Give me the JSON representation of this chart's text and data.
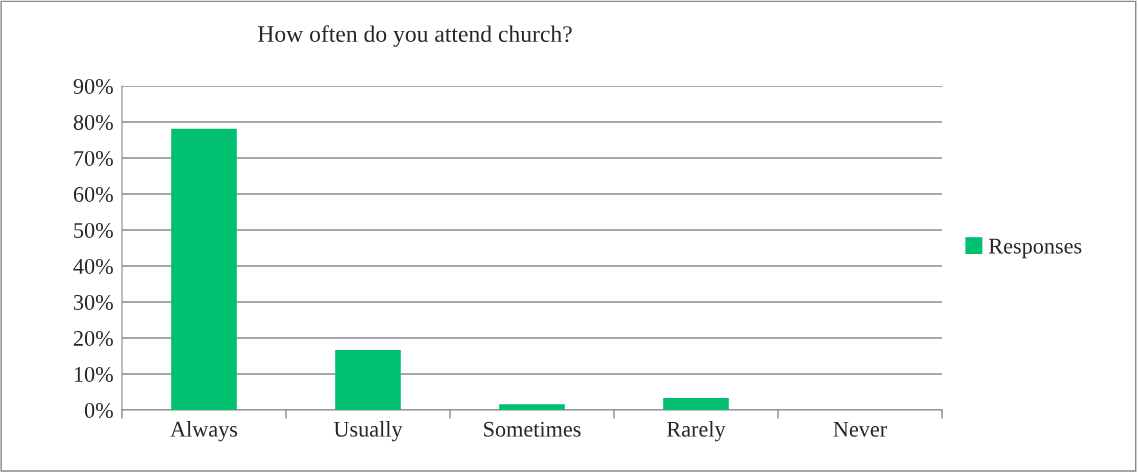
{
  "chart_data": {
    "type": "bar",
    "title": "How often do you attend church?",
    "categories": [
      "Always",
      "Usually",
      "Sometimes",
      "Rarely",
      "Never"
    ],
    "series": [
      {
        "name": "Responses",
        "color": "#00bf6f",
        "values": [
          78.1,
          16.7,
          1.6,
          3.3,
          0
        ]
      }
    ],
    "ylim": [
      0,
      90
    ],
    "yticks": [
      {
        "value": 0,
        "label": "0%"
      },
      {
        "value": 10,
        "label": "10%"
      },
      {
        "value": 20,
        "label": "20%"
      },
      {
        "value": 30,
        "label": "30%"
      },
      {
        "value": 40,
        "label": "40%"
      },
      {
        "value": 50,
        "label": "50%"
      },
      {
        "value": 60,
        "label": "60%"
      },
      {
        "value": 70,
        "label": "70%"
      },
      {
        "value": 80,
        "label": "80%"
      },
      {
        "value": 90,
        "label": "90%"
      }
    ],
    "grid": "y",
    "legend": "right"
  }
}
